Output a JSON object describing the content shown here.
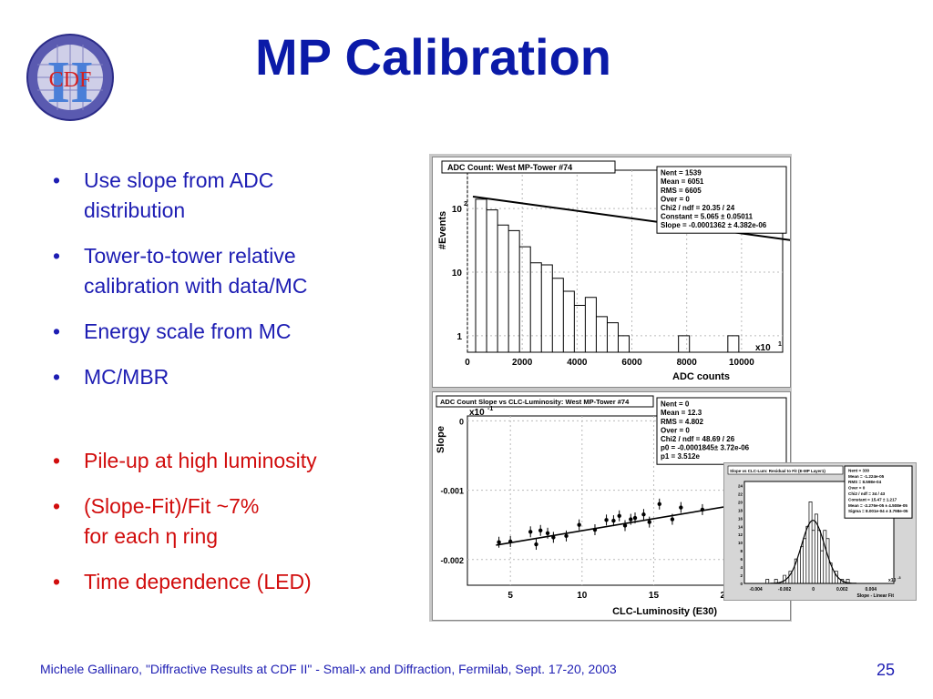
{
  "slide": {
    "title": "MP Calibration",
    "logo_text": "CDF",
    "logo_roman": "II",
    "page_number": "25",
    "footer": "Michele Gallinaro, \"Diffractive Results at CDF II\" - Small-x and Diffraction, Fermilab, Sept. 17-20, 2003"
  },
  "bullets_blue": [
    {
      "lines": [
        "Use slope from ADC",
        "distribution"
      ]
    },
    {
      "lines": [
        "Tower-to-tower relative",
        "calibration with data/MC"
      ]
    },
    {
      "lines": [
        "Energy scale from MC"
      ]
    },
    {
      "lines": [
        "MC/MBR"
      ]
    }
  ],
  "bullets_red": [
    {
      "lines": [
        "Pile-up at high luminosity"
      ]
    },
    {
      "lines": [
        "(Slope-Fit)/Fit ~7%",
        "for each η ring"
      ]
    },
    {
      "lines": [
        "Time dependence (LED)"
      ]
    }
  ],
  "bullet_symbol": "•",
  "colors": {
    "title": "#0b1aa8",
    "blue_text": "#1d1db3",
    "red_text": "#d10d0d"
  },
  "chart_data": [
    {
      "type": "histogram",
      "title": "ADC Count: West MP-Tower #74",
      "xlabel": "ADC counts",
      "ylabel": "#Events",
      "x_multiplier": "x10",
      "x_multiplier_exp": "1",
      "xlim": [
        0,
        11500
      ],
      "x_ticks": [
        "0",
        "2000",
        "4000",
        "6000",
        "8000",
        "10000"
      ],
      "y_scale": "log",
      "y_ticks": [
        "1",
        "10",
        "10"
      ],
      "y_tick_exps": [
        "",
        "",
        "2"
      ],
      "stats": [
        "Nent = 1539",
        "Mean  =   6051",
        "RMS   =   6605",
        "Over  =      0",
        "Chi2 / ndf = 20.35 / 24",
        "Constant = 5.065  ± 0.05011",
        "Slope    = -0.0001362  ± 4.382e-06"
      ],
      "fit": {
        "constant": 5.065,
        "slope": -0.0001362
      },
      "bins_x": [
        500,
        900,
        1300,
        1700,
        2100,
        2500,
        2900,
        3300,
        3700,
        4100,
        4500,
        4900,
        5300,
        5700,
        7900,
        9700
      ],
      "bins_y": [
        140,
        95,
        55,
        45,
        25,
        14,
        13,
        8,
        5,
        3,
        4,
        2,
        1.6,
        1,
        1,
        1
      ]
    },
    {
      "type": "scatter",
      "title": "ADC Count Slope vs CLC-Luminosity: West MP-Tower #74",
      "xlabel": "CLC-Luminosity (E30)",
      "ylabel": "Slope",
      "y_multiplier": "x10",
      "y_multiplier_exp": "-1",
      "xlim": [
        2,
        24
      ],
      "ylim": [
        -0.00237,
        7e-05
      ],
      "x_ticks": [
        "5",
        "10",
        "15",
        "20"
      ],
      "y_ticks": [
        "0",
        "-0.001",
        "-0.002"
      ],
      "stats": [
        "Nent = 0",
        "Mean  =   12.3",
        "RMS   =  4.802",
        "Over  =      0",
        "Chi2 / ndf = 48.69 / 26",
        "p0     = -0.0001845± 3.72e-06",
        "p1     = 3.512e"
      ],
      "fit": {
        "p0": -0.0001845,
        "p1": 3.512e-05
      },
      "x": [
        4.2,
        5.0,
        6.4,
        6.8,
        7.1,
        7.6,
        8.0,
        8.9,
        9.8,
        10.9,
        11.7,
        12.2,
        12.6,
        13.0,
        13.4,
        13.7,
        14.3,
        14.7,
        15.4,
        16.3,
        16.9,
        18.4,
        20.1,
        21.4,
        23.0
      ],
      "y": [
        -0.00175,
        -0.00174,
        -0.0016,
        -0.00178,
        -0.00158,
        -0.00162,
        -0.00168,
        -0.00166,
        -0.0015,
        -0.00157,
        -0.00143,
        -0.00144,
        -0.00137,
        -0.00151,
        -0.00142,
        -0.0014,
        -0.00135,
        -0.00146,
        -0.0012,
        -0.00142,
        -0.00125,
        -0.00128,
        -0.00087,
        -0.0012,
        -0.00112
      ]
    },
    {
      "type": "histogram",
      "title": "Slope vs CLC-Lum: Residual to Fit (E-MP Layer1)",
      "xlabel": "Slope - Linear Fit",
      "x_multiplier": "x10",
      "x_multiplier_exp": "-3",
      "xlim": [
        -0.0048,
        0.0056
      ],
      "x_ticks": [
        "-0.004",
        "-0.002",
        "0",
        "0.002",
        "0.004"
      ],
      "y_ticks": [
        "0",
        "2",
        "4",
        "6",
        "8",
        "10",
        "12",
        "14",
        "16",
        "18",
        "20",
        "22",
        "24"
      ],
      "stats": [
        "Nent = 330",
        "Mean  = -1.224e-05",
        "RMS   = 8.598e-04",
        "Over  =    0",
        "Chi2 / ndf = 34 / 43",
        "Constant = 15.47 ± 1.217",
        "Mean     = -2.276e-05 ± 4.508e-05",
        "Sigma    = 8.001e-04 ± 3.798e-05"
      ],
      "bins_x": [
        -0.0032,
        -0.0026,
        -0.002,
        -0.0016,
        -0.0012,
        -0.0008,
        -0.0006,
        -0.0004,
        -0.0002,
        0.0,
        0.0002,
        0.0004,
        0.0006,
        0.0008,
        0.001,
        0.0012,
        0.0016,
        0.002,
        0.0024
      ],
      "bins_y": [
        1,
        1,
        2,
        3,
        6,
        9,
        11,
        14,
        20,
        13,
        17,
        13,
        8,
        13,
        11,
        5,
        3,
        1,
        1
      ]
    }
  ]
}
